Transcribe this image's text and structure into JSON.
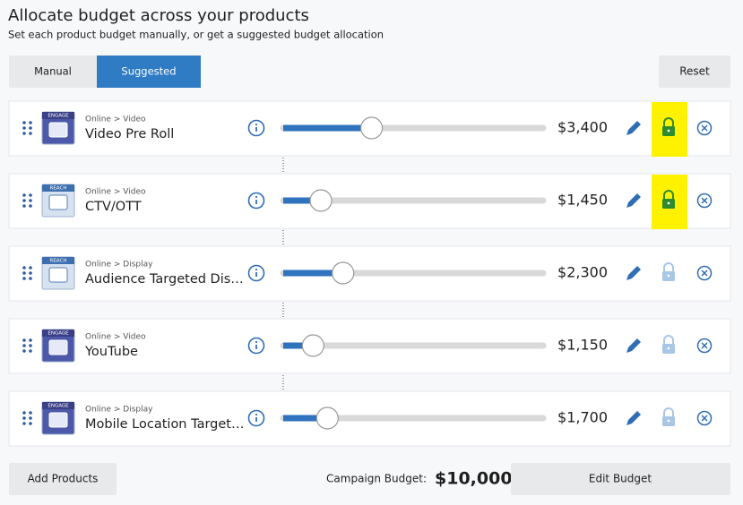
{
  "header": {
    "title": "Allocate budget across your products",
    "subtitle": "Set each product budget manually, or get a suggested budget allocation"
  },
  "tabs": [
    {
      "label": "Manual",
      "active": false
    },
    {
      "label": "Suggested",
      "active": true
    }
  ],
  "reset": "Reset",
  "products": [
    {
      "badge": "ENGAGE",
      "category": "Online > Video",
      "name": "Video Pre Roll",
      "amount": {
        "value": 3400,
        "label": "$3,400"
      },
      "locked": true,
      "highlighted": true
    },
    {
      "badge": "REACH",
      "category": "Online > Video",
      "name": "CTV/OTT",
      "amount": {
        "value": 1450,
        "label": "$1,450"
      },
      "locked": true,
      "highlighted": true
    },
    {
      "badge": "REACH",
      "category": "Online > Display",
      "name": "Audience Targeted Dis…",
      "amount": {
        "value": 2300,
        "label": "$2,300"
      },
      "locked": false,
      "highlighted": false
    },
    {
      "badge": "ENGAGE",
      "category": "Online > Video",
      "name": "YouTube",
      "amount": {
        "value": 1150,
        "label": "$1,150"
      },
      "locked": false,
      "highlighted": false
    },
    {
      "badge": "ENGAGE",
      "category": "Online > Display",
      "name": "Mobile Location Target…",
      "amount": {
        "value": 1700,
        "label": "$1,700"
      },
      "locked": false,
      "highlighted": false
    }
  ],
  "footer": {
    "add_products": "Add Products",
    "budget_label": "Campaign Budget:",
    "budget": {
      "value": 10000,
      "label": "$10,000"
    },
    "edit_budget": "Edit Budget"
  }
}
